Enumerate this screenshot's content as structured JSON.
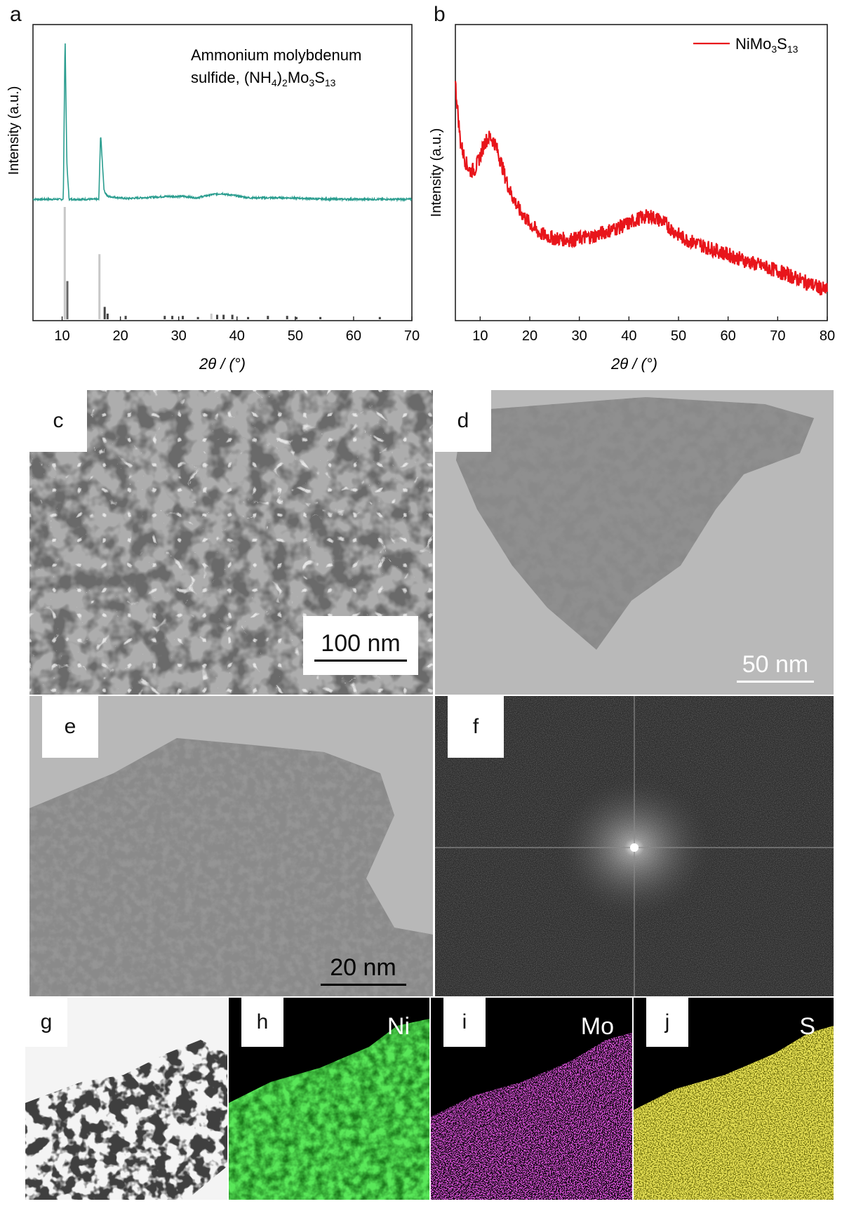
{
  "chart_data": [
    {
      "panel": "a",
      "type": "line",
      "xlabel": "2θ / (°)",
      "ylabel": "Intensity (a.u.)",
      "xlim": [
        5,
        70
      ],
      "xticks": [
        10,
        20,
        30,
        40,
        50,
        60,
        70
      ],
      "legend_text": "Ammonium molybdenum sulfide, (NH4)2Mo3S13",
      "legend_position": "top-right",
      "series": [
        {
          "color": "#2a9d8f",
          "x": [
            5,
            10.2,
            10.5,
            10.8,
            11.2,
            12,
            16.3,
            16.6,
            17.2,
            17.8,
            21,
            28,
            31,
            33,
            36,
            37.5,
            38,
            39,
            42,
            45.5,
            49,
            54,
            60,
            70
          ],
          "y": [
            1.0,
            1.0,
            12.5,
            3.6,
            1.0,
            1.0,
            1.0,
            5.6,
            1.6,
            1.2,
            1.05,
            1.2,
            1.2,
            1.1,
            1.35,
            1.4,
            1.35,
            1.3,
            1.1,
            1.1,
            1.1,
            1.02,
            1.0,
            1.0
          ]
        }
      ],
      "reference_sticks": {
        "color": "#555555",
        "peaks": [
          {
            "x": 10.45,
            "h": 1.0,
            "c": "#c8c8c8"
          },
          {
            "x": 10.9,
            "h": 0.34,
            "c": "#666666"
          },
          {
            "x": 16.4,
            "h": 0.58,
            "c": "#c8c8c8"
          },
          {
            "x": 17.3,
            "h": 0.11,
            "c": "#444444"
          },
          {
            "x": 17.8,
            "h": 0.05,
            "c": "#444444"
          },
          {
            "x": 20.9,
            "h": 0.03,
            "c": "#444444"
          },
          {
            "x": 27.6,
            "h": 0.03,
            "c": "#444444"
          },
          {
            "x": 28.9,
            "h": 0.03,
            "c": "#444444"
          },
          {
            "x": 30.7,
            "h": 0.03,
            "c": "#444444"
          },
          {
            "x": 33.3,
            "h": 0.02,
            "c": "#444444"
          },
          {
            "x": 35.6,
            "h": 0.05,
            "c": "#c8c8c8"
          },
          {
            "x": 36.6,
            "h": 0.04,
            "c": "#444444"
          },
          {
            "x": 37.7,
            "h": 0.04,
            "c": "#444444"
          },
          {
            "x": 39.2,
            "h": 0.04,
            "c": "#444444"
          },
          {
            "x": 41.9,
            "h": 0.02,
            "c": "#444444"
          },
          {
            "x": 45.3,
            "h": 0.03,
            "c": "#444444"
          },
          {
            "x": 48.6,
            "h": 0.03,
            "c": "#444444"
          },
          {
            "x": 50.2,
            "h": 0.02,
            "c": "#444444"
          },
          {
            "x": 54.3,
            "h": 0.02,
            "c": "#444444"
          },
          {
            "x": 64.5,
            "h": 0.02,
            "c": "#444444"
          }
        ]
      }
    },
    {
      "panel": "b",
      "type": "line",
      "xlabel": "2θ / (°)",
      "ylabel": "Intensity (a.u.)",
      "xlim": [
        5,
        80
      ],
      "xticks": [
        10,
        20,
        30,
        40,
        50,
        60,
        70,
        80
      ],
      "legend_position": "top-right",
      "series": [
        {
          "name": "NiMo3S13",
          "color": "#e8151b",
          "x": [
            5,
            6,
            7,
            8,
            9,
            10,
            11,
            12,
            13,
            14,
            15,
            16,
            18,
            20,
            22,
            25,
            28,
            30,
            33,
            35,
            38,
            40,
            42,
            44,
            45,
            47,
            49,
            51,
            55,
            60,
            65,
            70,
            75,
            80
          ],
          "y": [
            95,
            72,
            64,
            60,
            61,
            66,
            72,
            74,
            71,
            65,
            58,
            52,
            44,
            39,
            35,
            33,
            32.5,
            33,
            34,
            35.5,
            37.5,
            39,
            41,
            42,
            41.5,
            39.5,
            36,
            33,
            30,
            26.5,
            23,
            20,
            16,
            12
          ]
        }
      ]
    }
  ],
  "panels": {
    "a": {
      "letter": "a",
      "legend_line1": "Ammonium molybdenum",
      "legend_line2_prefix": "sulfide, (NH",
      "sub4": "4",
      "mid": ")",
      "sub2": "2",
      "mo": "Mo",
      "sub3": "3",
      "s": "S",
      "sub13": "13"
    },
    "b": {
      "letter": "b",
      "legend_prefix": "NiMo",
      "sub3": "3",
      "s": "S",
      "sub13": "13"
    },
    "c": {
      "letter": "c",
      "scale": "100 nm"
    },
    "d": {
      "letter": "d",
      "scale": "50 nm"
    },
    "e": {
      "letter": "e",
      "scale": "20 nm"
    },
    "f": {
      "letter": "f"
    },
    "g": {
      "letter": "g"
    },
    "h": {
      "letter": "h",
      "element": "Ni",
      "color": "#22cc22"
    },
    "i": {
      "letter": "i",
      "element": "Mo",
      "color": "#cc22cc"
    },
    "j": {
      "letter": "j",
      "element": "S",
      "color": "#cccc11"
    }
  },
  "axis_title": "2θ / (°)",
  "y_axis_title": "Intensity (a.u.)"
}
